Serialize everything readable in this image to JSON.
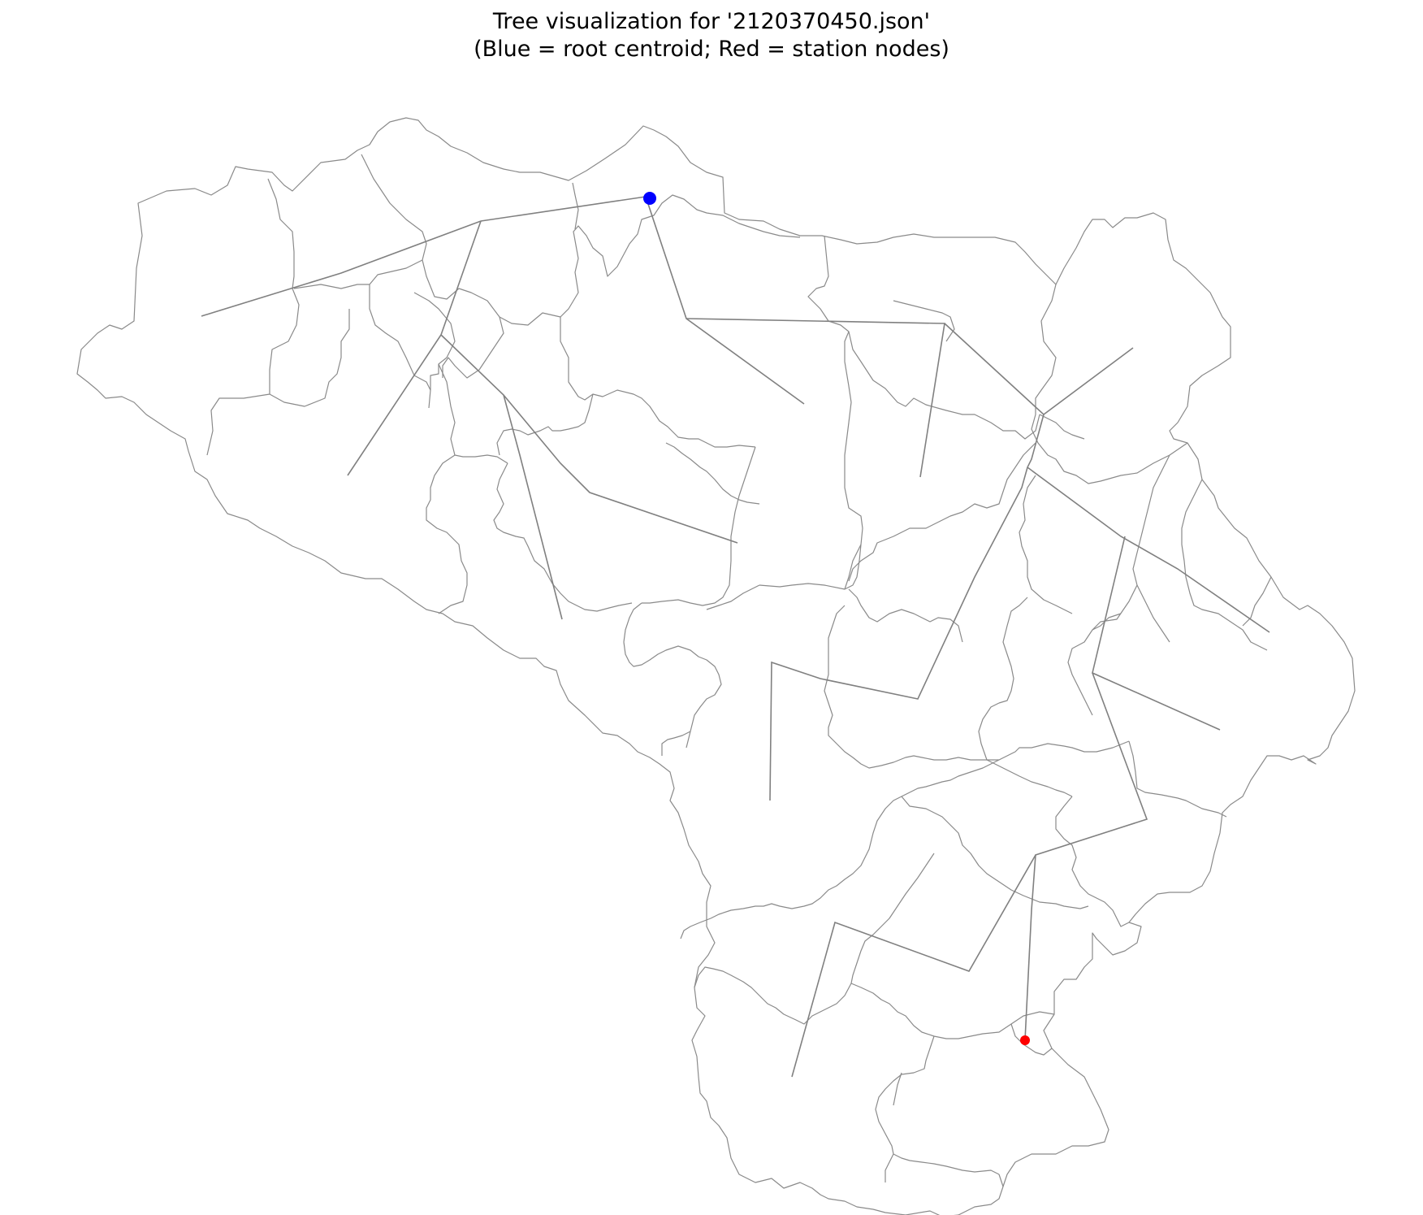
{
  "title_line1": "Tree visualization for '2120370450.json'",
  "title_line2": "(Blue = root centroid; Red = station nodes)",
  "colors": {
    "root": "#0000ff",
    "station": "#ff0000",
    "edge": "#808080",
    "boundary": "#8a8a8a",
    "background": "#ffffff"
  },
  "legend": [
    {
      "label": "Blue = root centroid",
      "color": "#0000ff"
    },
    {
      "label": "Red = station nodes",
      "color": "#ff0000"
    }
  ]
}
